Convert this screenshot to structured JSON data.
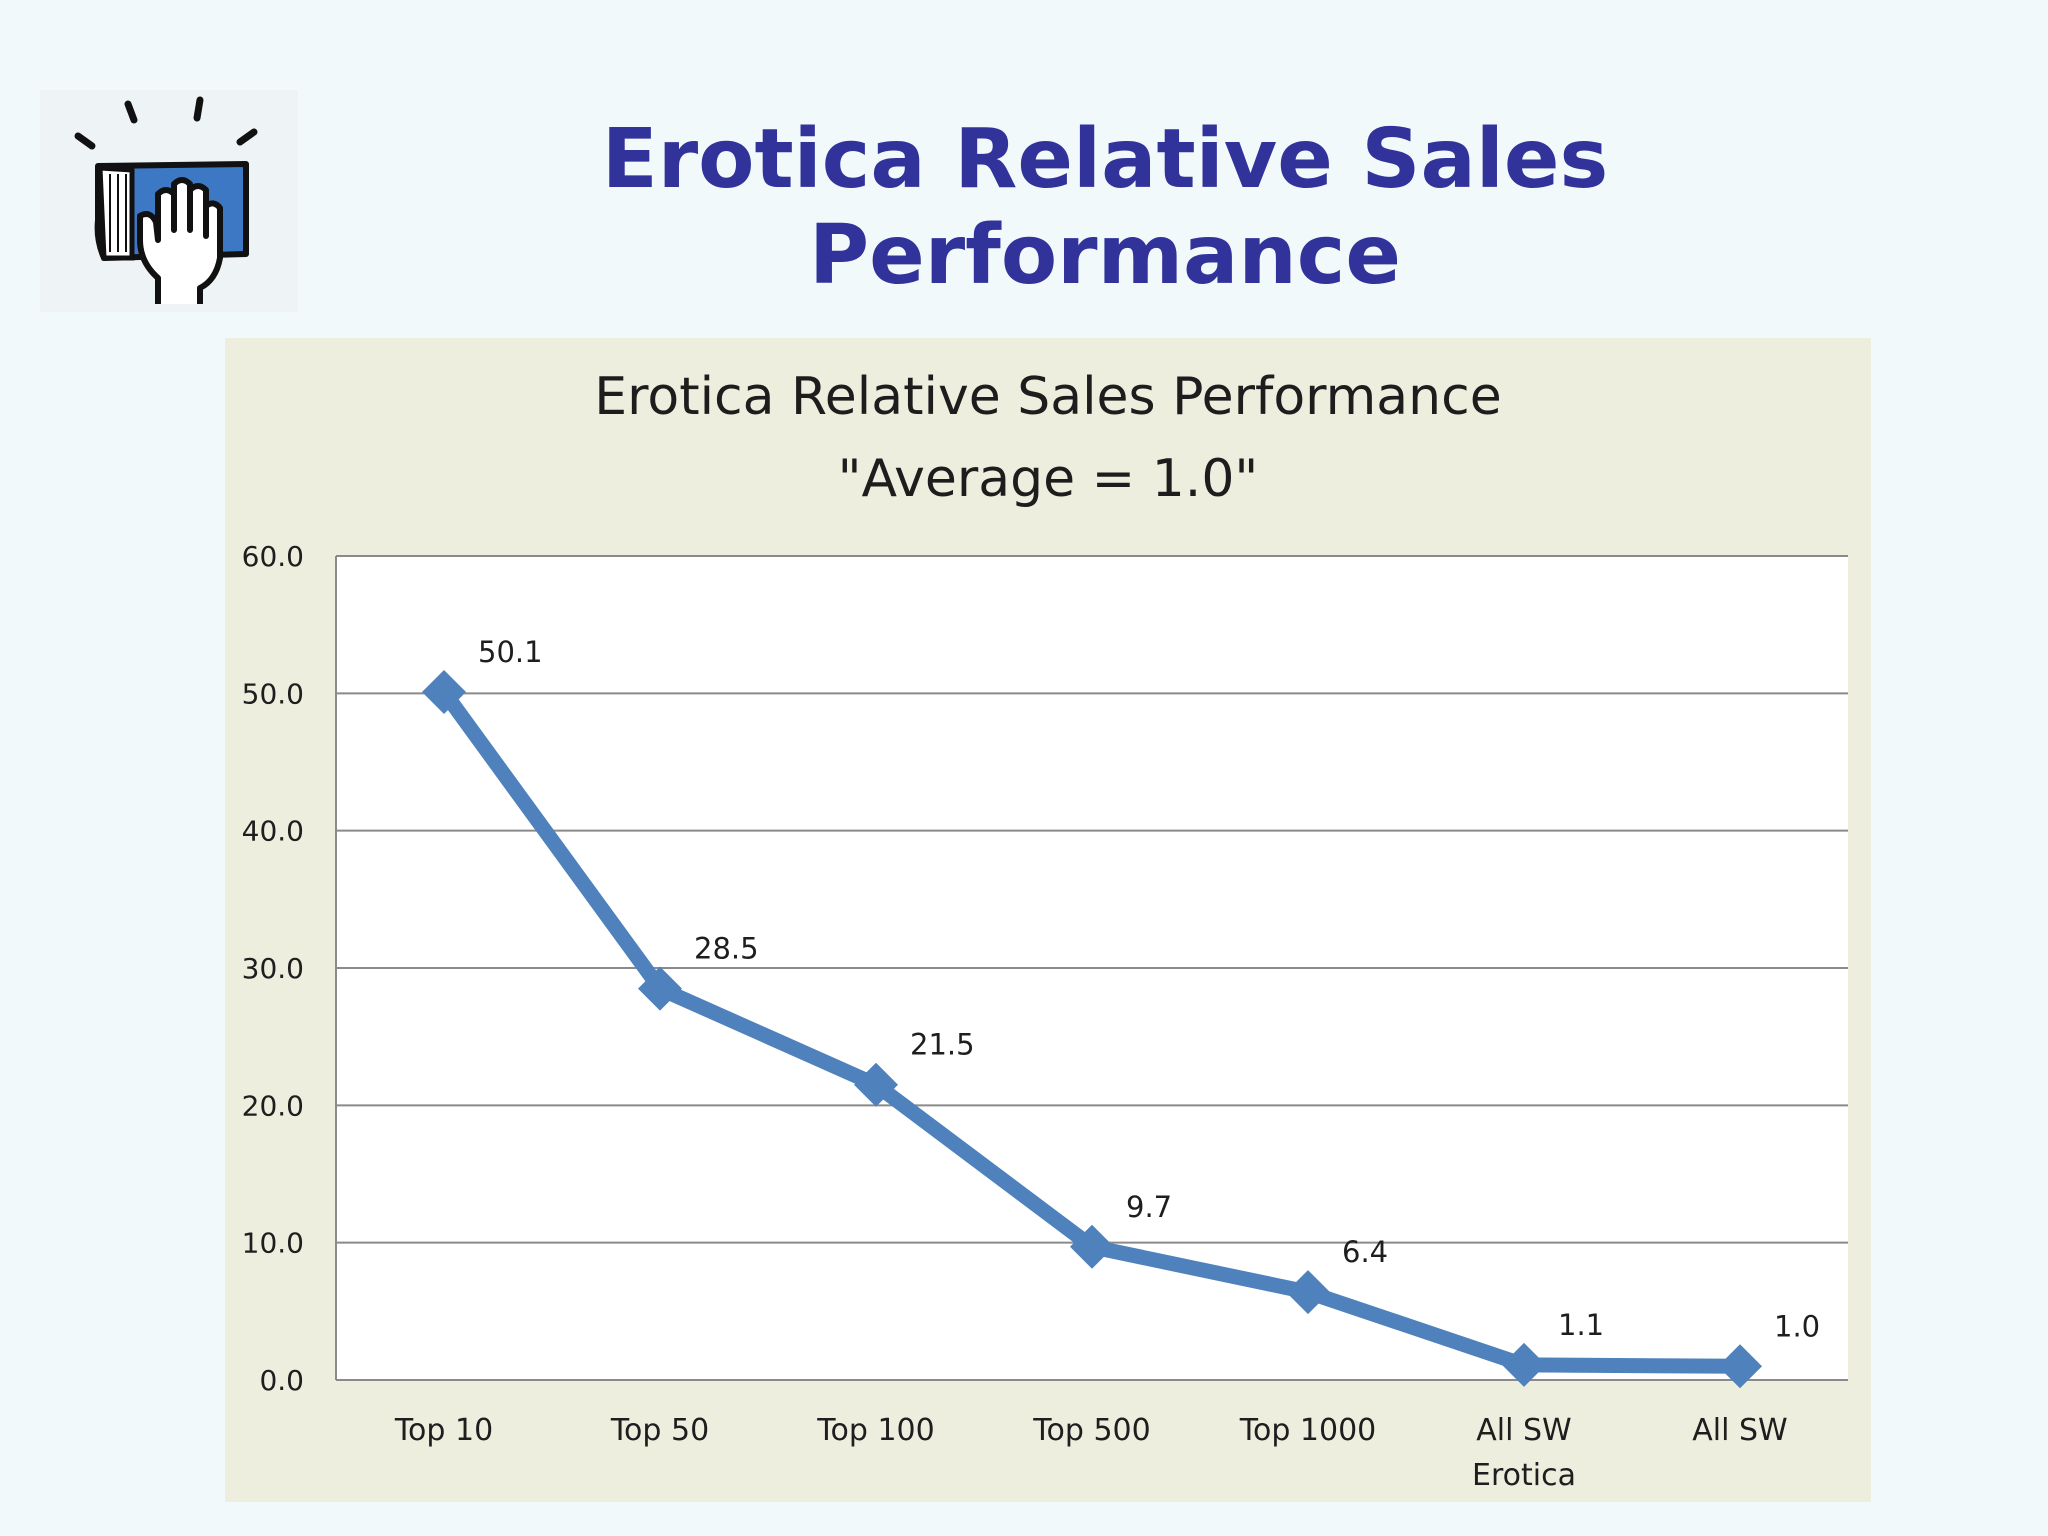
{
  "slide": {
    "title": "Erotica Relative Sales Performance"
  },
  "colors": {
    "title": "#31339b",
    "series": "#4f81bd",
    "panel": "#eeeedf",
    "background": "#f1f9fb"
  },
  "logo": {
    "icon": "hand-on-book-icon"
  },
  "chart_data": {
    "type": "line",
    "title": "Erotica Relative Sales Performance",
    "subtitle": "\"Average = 1.0\"",
    "categories": [
      "Top 10",
      "Top 50",
      "Top 100",
      "Top 500",
      "Top 1000",
      "All SW Erotica",
      "All SW"
    ],
    "series": [
      {
        "values": [
          50.1,
          28.5,
          21.5,
          9.7,
          6.4,
          1.1,
          1.0
        ]
      }
    ],
    "data_labels": [
      "50.1",
      "28.5",
      "21.5",
      "9.7",
      "6.4",
      "1.1",
      "1.0"
    ],
    "y_ticks": [
      "0.0",
      "10.0",
      "20.0",
      "30.0",
      "40.0",
      "50.0",
      "60.0"
    ],
    "ylim": [
      0,
      60
    ],
    "xlabel": "",
    "ylabel": "",
    "grid": true,
    "legend": "none",
    "marker": "diamond"
  }
}
